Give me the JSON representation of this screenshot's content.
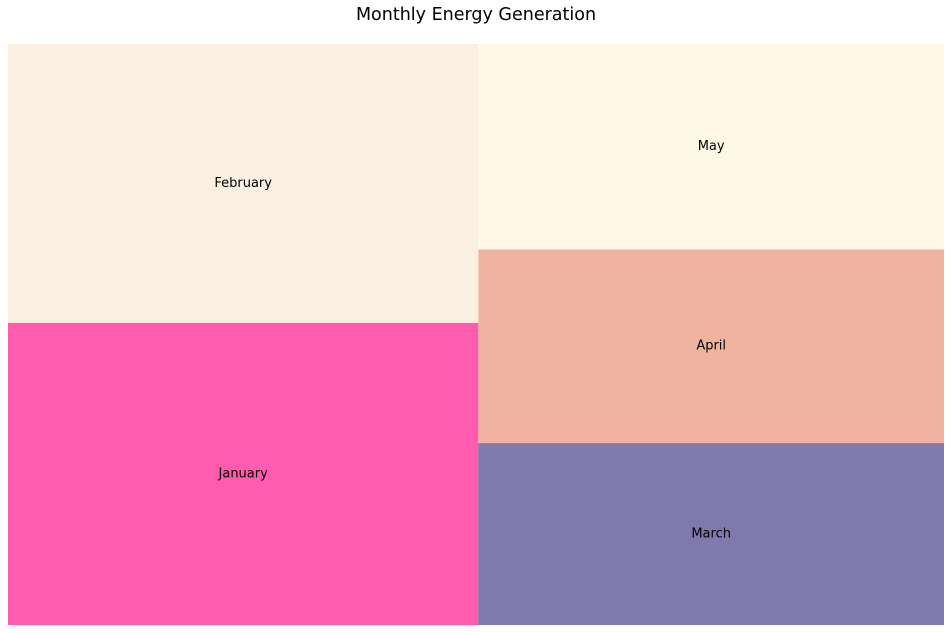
{
  "chart_data": {
    "type": "treemap",
    "title": "Monthly Energy Generation",
    "categories": [
      "January",
      "February",
      "March",
      "April",
      "May"
    ],
    "values": [
      52,
      48,
      31,
      33,
      35
    ],
    "colors": [
      "#ff5cb0",
      "#fbefe1",
      "#8079ad",
      "#f0b3a0",
      "#fff8e5"
    ]
  }
}
